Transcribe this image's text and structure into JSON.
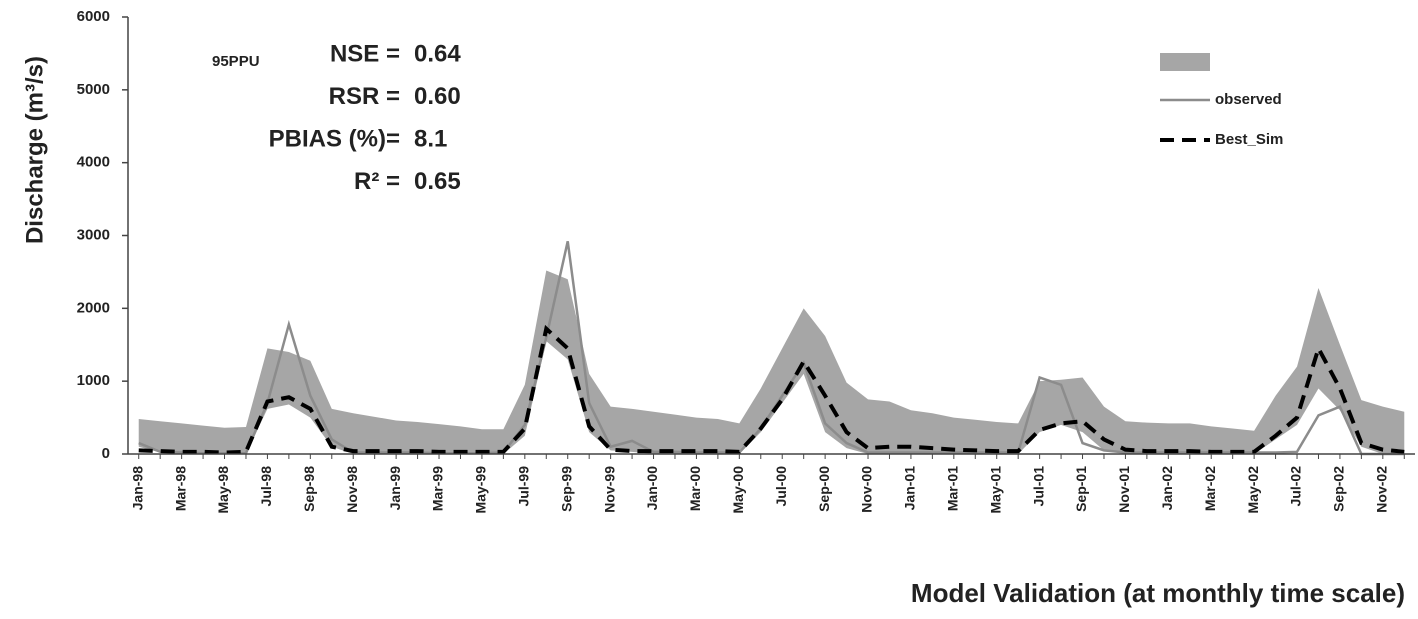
{
  "chart_data": {
    "type": "line",
    "y_label": "Discharge (m³/s)",
    "x_label": "Model  Validation  (at monthly time scale)",
    "annotations": [
      {
        "label": "NSE =",
        "value": "0.64"
      },
      {
        "label": "RSR =",
        "value": "0.60"
      },
      {
        "label": "PBIAS (%)=",
        "value": "8.1"
      },
      {
        "label": "R²   =",
        "value": "0.65"
      }
    ],
    "categories": [
      "Jan-98",
      null,
      "Mar-98",
      null,
      "May-98",
      null,
      "Jul-98",
      null,
      "Sep-98",
      null,
      "Nov-98",
      null,
      "Jan-99",
      null,
      "Mar-99",
      null,
      "May-99",
      null,
      "Jul-99",
      null,
      "Sep-99",
      null,
      "Nov-99",
      null,
      "Jan-00",
      null,
      "Mar-00",
      null,
      "May-00",
      null,
      "Jul-00",
      null,
      "Sep-00",
      null,
      "Nov-00",
      null,
      "Jan-01",
      null,
      "Mar-01",
      null,
      "May-01",
      null,
      "Jul-01",
      null,
      "Sep-01",
      null,
      "Nov-01",
      null,
      "Jan-02",
      null,
      "Mar-02",
      null,
      "May-02",
      null,
      "Jul-02",
      null,
      "Sep-02",
      null,
      "Nov-02",
      null
    ],
    "ylim": [
      0,
      6000
    ],
    "yticks": [
      0,
      1000,
      2000,
      3000,
      4000,
      5000,
      6000
    ],
    "band": {
      "name": "95PPU",
      "color": "#a6a6a6",
      "upper": [
        480,
        450,
        420,
        390,
        360,
        370,
        1450,
        1400,
        1280,
        620,
        560,
        510,
        460,
        440,
        410,
        380,
        340,
        340,
        950,
        2520,
        2400,
        1100,
        650,
        620,
        580,
        540,
        500,
        480,
        420,
        900,
        1450,
        2000,
        1620,
        980,
        750,
        720,
        600,
        560,
        500,
        470,
        440,
        420,
        1000,
        1020,
        1050,
        650,
        450,
        430,
        420,
        420,
        380,
        350,
        320,
        800,
        1200,
        2280,
        1500,
        740,
        650,
        580
      ],
      "lower": [
        100,
        20,
        0,
        0,
        0,
        0,
        620,
        680,
        500,
        100,
        0,
        0,
        0,
        0,
        0,
        0,
        0,
        0,
        250,
        1550,
        1300,
        300,
        50,
        30,
        0,
        0,
        0,
        0,
        0,
        300,
        700,
        1100,
        300,
        80,
        0,
        0,
        20,
        0,
        0,
        0,
        0,
        0,
        300,
        400,
        300,
        50,
        0,
        0,
        0,
        0,
        0,
        0,
        0,
        200,
        400,
        900,
        600,
        100,
        0,
        0
      ]
    },
    "series": [
      {
        "name": "observed",
        "color": "#8c8c8c",
        "dash": false,
        "values": [
          150,
          30,
          20,
          10,
          10,
          10,
          700,
          1780,
          800,
          200,
          20,
          20,
          20,
          20,
          10,
          10,
          10,
          20,
          400,
          1600,
          2920,
          700,
          100,
          180,
          30,
          30,
          20,
          20,
          20,
          350,
          800,
          1250,
          420,
          150,
          20,
          20,
          20,
          20,
          20,
          20,
          20,
          20,
          1050,
          950,
          150,
          50,
          20,
          20,
          20,
          20,
          20,
          20,
          20,
          20,
          30,
          530,
          650,
          0,
          0,
          0
        ]
      },
      {
        "name": "Best_Sim",
        "color": "#000000",
        "dash": true,
        "values": [
          50,
          40,
          30,
          30,
          20,
          30,
          720,
          780,
          620,
          100,
          40,
          40,
          40,
          40,
          30,
          30,
          30,
          30,
          350,
          1720,
          1450,
          380,
          60,
          40,
          40,
          40,
          40,
          40,
          30,
          350,
          750,
          1270,
          800,
          300,
          80,
          100,
          100,
          80,
          60,
          50,
          40,
          40,
          330,
          420,
          450,
          200,
          60,
          40,
          40,
          40,
          30,
          30,
          30,
          250,
          500,
          1450,
          900,
          150,
          60,
          30
        ]
      }
    ]
  }
}
